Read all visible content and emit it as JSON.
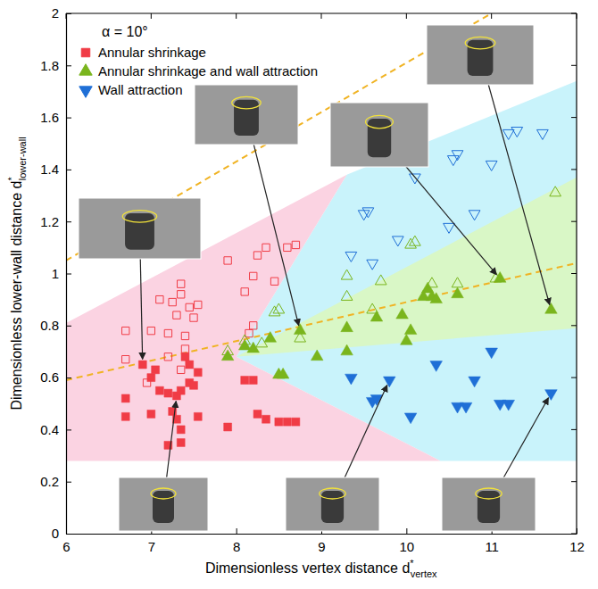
{
  "chart_data": {
    "type": "scatter",
    "annotation": "α = 10°",
    "x_label": {
      "text": "Dimensionless vertex distance d",
      "sup": "*",
      "sub": "vertex"
    },
    "y_label": {
      "text": "Dimensionless lower-wall distance d",
      "sup": "*",
      "sub": "lower-wall"
    },
    "xlim": [
      6,
      12
    ],
    "ylim": [
      0,
      2
    ],
    "xticks": [
      6,
      7,
      8,
      9,
      10,
      11,
      12
    ],
    "yticks": [
      0,
      0.2,
      0.4,
      0.6,
      0.8,
      1,
      1.2,
      1.4,
      1.6,
      1.8,
      2
    ],
    "legend": "upper left",
    "regions": [
      {
        "color": "#c9f3fb",
        "x": [
          9.3,
          12,
          12,
          10.4,
          8
        ],
        "values": [
          1.38,
          1.74,
          0.28,
          0.28,
          0.68
        ]
      },
      {
        "color": "#fbd3e2",
        "x": [
          6,
          6,
          9.3,
          8,
          10.4
        ],
        "values": [
          0.28,
          0.81,
          1.38,
          0.68,
          0.28
        ]
      },
      {
        "color": "#d9f7c6",
        "x": [
          8,
          12,
          12
        ],
        "values": [
          0.68,
          1.37,
          0.79
        ]
      }
    ],
    "lines": [
      {
        "color": "#f0b323",
        "line_style": "dashed",
        "x": [
          6,
          11
        ],
        "values": [
          1.05,
          2.0
        ]
      },
      {
        "color": "#f0b323",
        "line_style": "dashed",
        "x": [
          6,
          12
        ],
        "values": [
          0.59,
          1.04
        ]
      }
    ],
    "series": [
      {
        "name": "Annular shrinkage",
        "color": "#f03c46",
        "marker": "square",
        "x": [
          6.7,
          6.7,
          6.9,
          7.0,
          7.0,
          7.05,
          7.1,
          7.2,
          7.25,
          7.3,
          7.3,
          7.35,
          7.35,
          7.2,
          7.35,
          7.4,
          7.45,
          7.45,
          7.5,
          7.55,
          7.55,
          7.9,
          8.1,
          8.2,
          8.25,
          8.35,
          8.5,
          8.7,
          8.6
        ],
        "values": [
          0.52,
          0.45,
          0.65,
          0.46,
          0.6,
          0.63,
          0.55,
          0.54,
          0.47,
          0.53,
          0.44,
          0.4,
          0.35,
          0.34,
          0.55,
          0.68,
          0.65,
          0.58,
          0.57,
          0.45,
          0.62,
          0.41,
          0.59,
          0.59,
          0.46,
          0.44,
          0.43,
          0.43,
          0.43
        ]
      },
      {
        "name": "Annular shrinkage",
        "color": "#f03c46",
        "marker": "square-open",
        "x": [
          6.7,
          6.7,
          6.95,
          7.0,
          7.1,
          7.2,
          7.2,
          7.25,
          7.3,
          7.35,
          7.35,
          7.4,
          7.4,
          7.45,
          7.5,
          7.55,
          7.35,
          7.9,
          8.1,
          8.2,
          8.25,
          8.35,
          8.45,
          8.6,
          8.7,
          8.2,
          8.15
        ],
        "values": [
          0.78,
          0.67,
          0.58,
          0.78,
          0.9,
          0.77,
          0.68,
          0.89,
          0.84,
          0.96,
          0.92,
          0.76,
          0.71,
          0.87,
          0.83,
          0.88,
          0.63,
          1.05,
          0.93,
          0.99,
          1.07,
          1.1,
          0.97,
          1.1,
          1.11,
          0.8,
          0.77
        ]
      },
      {
        "name": "Annular shrinkage and wall attraction",
        "color": "#7ab51d",
        "marker": "triangle-up",
        "x": [
          7.9,
          8.1,
          8.2,
          8.4,
          8.5,
          8.55,
          8.75,
          8.95,
          9.3,
          9.3,
          9.65,
          9.95,
          10.0,
          10.05,
          10.2,
          10.25,
          10.3,
          10.35,
          10.6,
          11.1,
          11.7
        ],
        "values": [
          0.68,
          0.72,
          0.71,
          0.75,
          0.61,
          0.61,
          0.78,
          0.68,
          0.79,
          0.7,
          0.83,
          0.84,
          0.74,
          0.78,
          0.91,
          0.94,
          0.91,
          0.9,
          0.92,
          0.98,
          0.86
        ]
      },
      {
        "name": "Annular shrinkage and wall attraction",
        "color": "#7ab51d",
        "marker": "triangle-up-open",
        "x": [
          7.9,
          8.1,
          8.3,
          8.45,
          8.5,
          8.75,
          9.3,
          9.3,
          9.6,
          9.7,
          10.05,
          10.1,
          10.3,
          10.6,
          11.05,
          11.75
        ],
        "values": [
          0.7,
          0.74,
          0.73,
          0.85,
          0.86,
          0.75,
          0.99,
          0.91,
          0.86,
          0.97,
          1.11,
          1.12,
          0.96,
          0.96,
          0.98,
          1.31
        ]
      },
      {
        "name": "Wall attraction",
        "color": "#1f6fd6",
        "marker": "triangle-down",
        "x": [
          9.35,
          9.6,
          9.65,
          9.8,
          10.05,
          10.35,
          10.6,
          10.7,
          10.8,
          11.0,
          11.1,
          11.2,
          11.7
        ],
        "values": [
          0.6,
          0.51,
          0.52,
          0.59,
          0.45,
          0.65,
          0.49,
          0.49,
          0.59,
          0.7,
          0.5,
          0.5,
          0.54
        ]
      },
      {
        "name": "Wall attraction",
        "color": "#1f6fd6",
        "marker": "triangle-down-open",
        "x": [
          9.35,
          9.5,
          9.55,
          9.6,
          9.9,
          10.1,
          10.5,
          10.55,
          10.6,
          10.8,
          11.0,
          11.2,
          11.3,
          11.6
        ],
        "values": [
          1.07,
          1.23,
          1.24,
          1.04,
          1.13,
          1.37,
          1.18,
          1.44,
          1.46,
          1.23,
          1.42,
          1.54,
          1.55,
          1.54
        ]
      }
    ]
  }
}
